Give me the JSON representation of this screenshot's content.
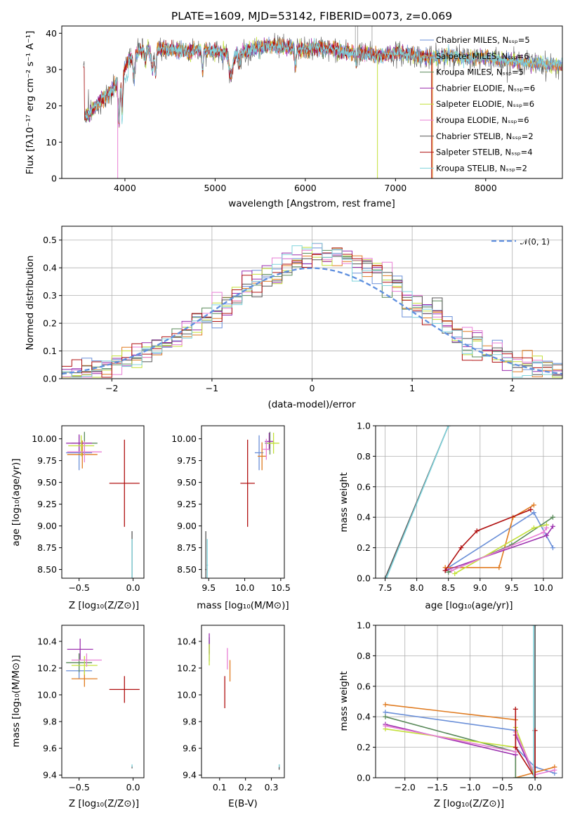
{
  "colors": [
    "#6a8fd8",
    "#e07b20",
    "#5a8a5a",
    "#9b2fae",
    "#c3e03a",
    "#e87fd5",
    "#555555",
    "#b01010",
    "#7fd3dc"
  ],
  "chart_data": [
    {
      "id": "spectrum",
      "type": "line",
      "title": "PLATE=1609, MJD=53142, FIBERID=0073, z=0.069",
      "xlabel": "wavelength [Angstrom, rest frame]",
      "ylabel": "Flux [fλ10⁻¹⁷ erg cm⁻² s⁻¹ A⁻¹]",
      "xlim": [
        3300,
        8850
      ],
      "ylim": [
        0,
        42
      ],
      "xticks": [
        "4000",
        "5000",
        "6000",
        "7000",
        "8000"
      ],
      "yticks": [
        "0",
        "10",
        "20",
        "30",
        "40"
      ],
      "legend_position": "top-right",
      "grid": false,
      "legend": [
        "Chabrier MILES, Nₛₛₚ=5",
        "Salpeter MILES, Nₛₛₚ=6",
        "Kroupa MILES, Nₛₛₚ=5",
        "Chabrier ELODIE, Nₛₛₚ=6",
        "Salpeter ELODIE, Nₛₛₚ=6",
        "Kroupa ELODIE, Nₛₛₚ=6",
        "Chabrier STELIB, Nₛₛₚ=2",
        "Salpeter STELIB, Nₛₛₚ=4",
        "Kroupa STELIB, Nₛₛₚ=2"
      ],
      "continuum": [
        [
          3550,
          17
        ],
        [
          3650,
          19
        ],
        [
          3750,
          22
        ],
        [
          3850,
          24
        ],
        [
          3950,
          28
        ],
        [
          4050,
          33
        ],
        [
          4150,
          35
        ],
        [
          4300,
          36
        ],
        [
          4500,
          35.5
        ],
        [
          4700,
          35
        ],
        [
          4850,
          35.5
        ],
        [
          5000,
          35
        ],
        [
          5200,
          34
        ],
        [
          5400,
          35.5
        ],
        [
          5600,
          36.5
        ],
        [
          5800,
          36
        ],
        [
          6000,
          35.5
        ],
        [
          6200,
          36
        ],
        [
          6400,
          35
        ],
        [
          6600,
          34.5
        ],
        [
          6800,
          34
        ],
        [
          7000,
          34.5
        ],
        [
          7200,
          34
        ],
        [
          7400,
          33
        ],
        [
          7600,
          34
        ],
        [
          7800,
          33
        ],
        [
          8000,
          33.5
        ],
        [
          8200,
          32.5
        ],
        [
          8400,
          32
        ],
        [
          8600,
          31.5
        ],
        [
          8850,
          31
        ]
      ],
      "absorptions": [
        [
          3934,
          12,
          10
        ],
        [
          3969,
          10,
          8
        ],
        [
          4101,
          6,
          10
        ],
        [
          4227,
          3,
          8
        ],
        [
          4305,
          6,
          15
        ],
        [
          4340,
          7,
          8
        ],
        [
          4861,
          6,
          8
        ],
        [
          5175,
          6,
          20
        ],
        [
          5270,
          3,
          10
        ],
        [
          5890,
          5,
          8
        ],
        [
          6563,
          3,
          6
        ]
      ]
    },
    {
      "id": "residuals",
      "type": "step",
      "xlabel": "(data-model)/error",
      "ylabel": "Normed distribution",
      "xlim": [
        -2.5,
        2.5
      ],
      "ylim": [
        0,
        0.55
      ],
      "xticks": [
        -2,
        -1,
        0,
        1,
        2
      ],
      "xticklabels": [
        "−2",
        "−1",
        "0",
        "1",
        "2"
      ],
      "yticks": [
        0.0,
        0.1,
        0.2,
        0.3,
        0.4,
        0.5
      ],
      "yticklabels": [
        "0.0",
        "0.1",
        "0.2",
        "0.3",
        "0.4",
        "0.5"
      ],
      "grid": true,
      "legend": "𝒩(0, 1)",
      "legend_position": "top-right",
      "bin_width": 0.1,
      "bin_start": -2.5
    },
    {
      "id": "age_vs_Z",
      "type": "errorbar",
      "xlabel": "Z [log₁₀(Z/Z⊙)]",
      "ylabel": "age  [log₁₀(age/yr)]",
      "xlim": [
        -0.66,
        0.1
      ],
      "ylim": [
        8.4,
        10.15
      ],
      "xticks": [
        -0.5,
        0.0
      ],
      "xticklabels": [
        "−0.5",
        "0.0"
      ],
      "yticks": [
        8.5,
        8.75,
        9.0,
        9.25,
        9.5,
        9.75,
        10.0
      ],
      "yticklabels": [
        "8.50",
        "8.75",
        "9.00",
        "9.25",
        "9.50",
        "9.75",
        "10.00"
      ],
      "points": [
        {
          "c": 0,
          "x": -0.5,
          "xe": 0.12,
          "y": 9.84,
          "ye": 0.2
        },
        {
          "c": 1,
          "x": -0.47,
          "xe": 0.14,
          "y": 9.82,
          "ye": 0.16
        },
        {
          "c": 2,
          "x": -0.45,
          "xe": 0.12,
          "y": 9.95,
          "ye": 0.13
        },
        {
          "c": 3,
          "x": -0.5,
          "xe": 0.12,
          "y": 9.95,
          "ye": 0.1
        },
        {
          "c": 4,
          "x": -0.48,
          "xe": 0.12,
          "y": 9.92,
          "ye": 0.12
        },
        {
          "c": 5,
          "x": -0.45,
          "xe": 0.16,
          "y": 9.85,
          "ye": 0.12
        },
        {
          "c": 6,
          "x": -0.01,
          "xe": 0.003,
          "y": 8.5,
          "ye": 0.44
        },
        {
          "c": 7,
          "x": -0.08,
          "xe": 0.14,
          "y": 9.49,
          "ye": 0.5
        },
        {
          "c": 8,
          "x": -0.01,
          "xe": 0.003,
          "y": 8.55,
          "ye": 0.3
        }
      ]
    },
    {
      "id": "age_vs_mass",
      "type": "errorbar",
      "xlabel": "mass [log₁₀(M/M⊙)]",
      "xlim": [
        9.4,
        10.55
      ],
      "ylim": [
        8.4,
        10.15
      ],
      "xticks": [
        9.5,
        10.0,
        10.5
      ],
      "xticklabels": [
        "9.5",
        "10.0",
        "10.5"
      ],
      "yticks": [
        8.5,
        8.75,
        9.0,
        9.25,
        9.5,
        9.75,
        10.0
      ],
      "yticklabels": [
        "8.50",
        "8.75",
        "9.00",
        "9.25",
        "9.50",
        "9.75",
        "10.00"
      ],
      "points": [
        {
          "c": 0,
          "x": 10.2,
          "xe": 0.06,
          "y": 9.84,
          "ye": 0.2
        },
        {
          "c": 1,
          "x": 10.24,
          "xe": 0.06,
          "y": 9.8,
          "ye": 0.16
        },
        {
          "c": 2,
          "x": 10.35,
          "xe": 0.07,
          "y": 9.95,
          "ye": 0.13
        },
        {
          "c": 3,
          "x": 10.34,
          "xe": 0.06,
          "y": 9.97,
          "ye": 0.1
        },
        {
          "c": 4,
          "x": 10.4,
          "xe": 0.08,
          "y": 9.95,
          "ye": 0.12
        },
        {
          "c": 5,
          "x": 10.3,
          "xe": 0.05,
          "y": 9.88,
          "ye": 0.12
        },
        {
          "c": 6,
          "x": 9.46,
          "xe": 0.01,
          "y": 8.5,
          "ye": 0.44
        },
        {
          "c": 7,
          "x": 10.04,
          "xe": 0.1,
          "y": 9.49,
          "ye": 0.5
        },
        {
          "c": 8,
          "x": 9.48,
          "xe": 0.01,
          "y": 8.55,
          "ye": 0.3
        }
      ]
    },
    {
      "id": "weight_vs_age",
      "type": "line",
      "xlabel": "age  [log₁₀(age/yr)]",
      "ylabel": "mass weight",
      "xlim": [
        7.35,
        10.3
      ],
      "ylim": [
        0,
        1
      ],
      "xticks": [
        7.5,
        8.0,
        8.5,
        9.0,
        9.5,
        10.0
      ],
      "xticklabels": [
        "7.5",
        "8.0",
        "8.5",
        "9.0",
        "9.5",
        "10.0"
      ],
      "yticks": [
        0,
        0.2,
        0.4,
        0.6,
        0.8,
        1.0
      ],
      "yticklabels": [
        "0.0",
        "0.2",
        "0.4",
        "0.6",
        "0.8",
        "1.0"
      ],
      "grid": true,
      "series": [
        {
          "c": 0,
          "x": [
            8.5,
            9.85,
            10.15
          ],
          "y": [
            0.07,
            0.43,
            0.2
          ]
        },
        {
          "c": 1,
          "x": [
            8.45,
            9.3,
            9.52,
            9.85
          ],
          "y": [
            0.07,
            0.07,
            0.4,
            0.48
          ]
        },
        {
          "c": 2,
          "x": [
            8.5,
            9.5,
            10.15
          ],
          "y": [
            0.04,
            0.22,
            0.4
          ]
        },
        {
          "c": 3,
          "x": [
            8.45,
            10.05,
            10.15
          ],
          "y": [
            0.05,
            0.28,
            0.34
          ]
        },
        {
          "c": 4,
          "x": [
            8.6,
            9.85,
            10.05
          ],
          "y": [
            0.03,
            0.33,
            0.35
          ]
        },
        {
          "c": 5,
          "x": [
            8.55,
            10.0,
            10.05
          ],
          "y": [
            0.05,
            0.3,
            0.33
          ]
        },
        {
          "c": 6,
          "x": [
            7.5,
            8.5
          ],
          "y": [
            0.0,
            1.0
          ]
        },
        {
          "c": 7,
          "x": [
            8.45,
            8.7,
            8.95,
            9.8
          ],
          "y": [
            0.05,
            0.2,
            0.31,
            0.45
          ]
        },
        {
          "c": 8,
          "x": [
            7.52,
            8.5
          ],
          "y": [
            0.0,
            1.0
          ]
        }
      ]
    },
    {
      "id": "mass_vs_Z",
      "type": "errorbar",
      "xlabel": "Z [log₁₀(Z/Z⊙)]",
      "ylabel": "mass [log₁₀(M/M⊙)]",
      "xlim": [
        -0.66,
        0.1
      ],
      "ylim": [
        9.38,
        10.52
      ],
      "xticks": [
        -0.5,
        0.0
      ],
      "xticklabels": [
        "−0.5",
        "0.0"
      ],
      "yticks": [
        9.4,
        9.6,
        9.8,
        10.0,
        10.2,
        10.4
      ],
      "yticklabels": [
        "9.4",
        "9.6",
        "9.8",
        "10.0",
        "10.2",
        "10.4"
      ],
      "points": [
        {
          "c": 0,
          "x": -0.5,
          "xe": 0.12,
          "y": 10.18,
          "ye": 0.06
        },
        {
          "c": 1,
          "x": -0.45,
          "xe": 0.12,
          "y": 10.12,
          "ye": 0.06
        },
        {
          "c": 2,
          "x": -0.5,
          "xe": 0.12,
          "y": 10.24,
          "ye": 0.07
        },
        {
          "c": 3,
          "x": -0.49,
          "xe": 0.12,
          "y": 10.34,
          "ye": 0.08
        },
        {
          "c": 4,
          "x": -0.45,
          "xe": 0.12,
          "y": 10.22,
          "ye": 0.07
        },
        {
          "c": 5,
          "x": -0.43,
          "xe": 0.14,
          "y": 10.26,
          "ye": 0.05
        },
        {
          "c": 6,
          "x": -0.01,
          "xe": 0.003,
          "y": 9.46,
          "ye": 0.01
        },
        {
          "c": 7,
          "x": -0.08,
          "xe": 0.14,
          "y": 10.04,
          "ye": 0.1
        },
        {
          "c": 8,
          "x": -0.01,
          "xe": 0.003,
          "y": 9.47,
          "ye": 0.01
        }
      ]
    },
    {
      "id": "mass_vs_EBV",
      "type": "errorbar",
      "xlabel": "E(B-V)",
      "xlim": [
        0.03,
        0.35
      ],
      "ylim": [
        9.38,
        10.52
      ],
      "xticks": [
        0.1,
        0.2,
        0.3
      ],
      "xticklabels": [
        "0.1",
        "0.2",
        "0.3"
      ],
      "yticks": [
        9.4,
        9.6,
        9.8,
        10.0,
        10.2,
        10.4
      ],
      "yticklabels": [
        "9.4",
        "9.6",
        "9.8",
        "10.0",
        "10.2",
        "10.4"
      ],
      "points": [
        {
          "c": 0,
          "x": 0.06,
          "xe": 0,
          "y": 10.33,
          "ye": 0.08
        },
        {
          "c": 1,
          "x": 0.14,
          "xe": 0,
          "y": 10.18,
          "ye": 0.08
        },
        {
          "c": 2,
          "x": 0.06,
          "xe": 0,
          "y": 10.37,
          "ye": 0.06
        },
        {
          "c": 3,
          "x": 0.06,
          "xe": 0,
          "y": 10.38,
          "ye": 0.08
        },
        {
          "c": 4,
          "x": 0.06,
          "xe": 0,
          "y": 10.3,
          "ye": 0.08
        },
        {
          "c": 5,
          "x": 0.13,
          "xe": 0,
          "y": 10.27,
          "ye": 0.08
        },
        {
          "c": 6,
          "x": 0.33,
          "xe": 0,
          "y": 9.46,
          "ye": 0.02
        },
        {
          "c": 7,
          "x": 0.12,
          "xe": 0,
          "y": 10.02,
          "ye": 0.12
        },
        {
          "c": 8,
          "x": 0.33,
          "xe": 0,
          "y": 9.47,
          "ye": 0.01
        }
      ]
    },
    {
      "id": "weight_vs_Z",
      "type": "line",
      "xlabel": "Z [log₁₀(Z/Z⊙)]",
      "ylabel": "mass weight",
      "xlim": [
        -2.45,
        0.42
      ],
      "ylim": [
        0,
        1
      ],
      "xticks": [
        -2.0,
        -1.5,
        -1.0,
        -0.5,
        0.0
      ],
      "xticklabels": [
        "−2.0",
        "−1.5",
        "−1.0",
        "−0.5",
        "0.0"
      ],
      "yticks": [
        0,
        0.2,
        0.4,
        0.6,
        0.8,
        1.0
      ],
      "yticklabels": [
        "0.0",
        "0.2",
        "0.4",
        "0.6",
        "0.8",
        "1.0"
      ],
      "grid": true,
      "series": [
        {
          "c": 0,
          "x": [
            -2.3,
            -0.3,
            -0.3,
            0.0,
            0.3
          ],
          "y": [
            0.43,
            0.31,
            0.2,
            0.07,
            0.03
          ]
        },
        {
          "c": 1,
          "x": [
            -2.3,
            -0.3,
            -0.3,
            0.3
          ],
          "y": [
            0.48,
            0.38,
            0.0,
            0.07
          ]
        },
        {
          "c": 2,
          "x": [
            -2.3,
            -0.3,
            -0.3,
            0.0
          ],
          "y": [
            0.4,
            0.17,
            0.0,
            0.0
          ]
        },
        {
          "c": 3,
          "x": [
            -2.3,
            -0.3,
            -0.3,
            0.0
          ],
          "y": [
            0.35,
            0.15,
            0.28,
            0.0
          ]
        },
        {
          "c": 4,
          "x": [
            -2.3,
            -0.3,
            -0.3,
            0.0
          ],
          "y": [
            0.32,
            0.2,
            0.33,
            0.0
          ]
        },
        {
          "c": 5,
          "x": [
            -2.3,
            -0.3,
            -0.3,
            0.0,
            0.3
          ],
          "y": [
            0.34,
            0.17,
            0.3,
            0.02,
            0.05
          ]
        },
        {
          "c": 6,
          "x": [
            0.0,
            0.0
          ],
          "y": [
            0.0,
            1.0
          ]
        },
        {
          "c": 7,
          "x": [
            -0.3,
            -0.3,
            0.0,
            0.0
          ],
          "y": [
            0.45,
            0.2,
            0.0,
            0.31
          ]
        },
        {
          "c": 8,
          "x": [
            -0.02,
            -0.02
          ],
          "y": [
            0.0,
            1.0
          ]
        }
      ]
    }
  ]
}
